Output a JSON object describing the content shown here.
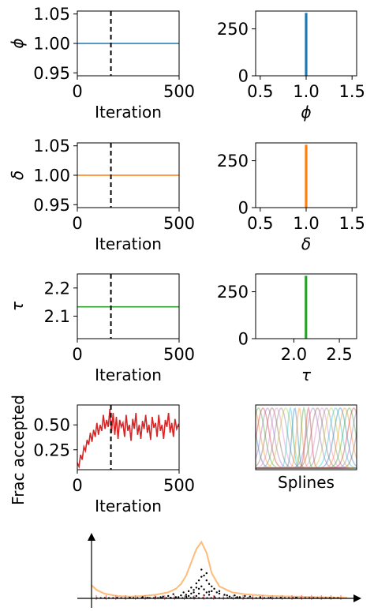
{
  "chart_data": [
    {
      "id": "trace-phi",
      "type": "line",
      "xlabel": "Iteration",
      "ylabel": "ϕ",
      "xlim": [
        0,
        500
      ],
      "ylim": [
        0.945,
        1.055
      ],
      "xticks": [
        "0",
        "500"
      ],
      "yticks": [
        "0.95",
        "1.00",
        "1.05"
      ],
      "xtick_values": [
        0,
        500
      ],
      "ytick_values": [
        0.95,
        1.0,
        1.05
      ],
      "burn_in": 165,
      "series": [
        {
          "color": "#1f77b4",
          "x": [
            0,
            500
          ],
          "y": [
            1.0,
            1.0
          ]
        }
      ]
    },
    {
      "id": "hist-phi",
      "type": "bar",
      "xlabel": "ϕ",
      "ylabel": "",
      "xlim": [
        0.45,
        1.55
      ],
      "ylim": [
        0,
        345
      ],
      "xticks": [
        "0.5",
        "1.0",
        "1.5"
      ],
      "yticks": [
        "0",
        "250"
      ],
      "xtick_values": [
        0.5,
        1.0,
        1.5
      ],
      "ytick_values": [
        0,
        250
      ],
      "bars": [
        {
          "x": 1.0,
          "value": 335,
          "color": "#1f77b4"
        }
      ]
    },
    {
      "id": "trace-delta",
      "type": "line",
      "xlabel": "Iteration",
      "ylabel": "δ",
      "xlim": [
        0,
        500
      ],
      "ylim": [
        0.945,
        1.055
      ],
      "xticks": [
        "0",
        "500"
      ],
      "yticks": [
        "0.95",
        "1.00",
        "1.05"
      ],
      "xtick_values": [
        0,
        500
      ],
      "ytick_values": [
        0.95,
        1.0,
        1.05
      ],
      "burn_in": 165,
      "series": [
        {
          "color": "#ff7f0e",
          "x": [
            0,
            500
          ],
          "y": [
            1.0,
            1.0
          ]
        }
      ]
    },
    {
      "id": "hist-delta",
      "type": "bar",
      "xlabel": "δ",
      "ylabel": "",
      "xlim": [
        0.45,
        1.55
      ],
      "ylim": [
        0,
        345
      ],
      "xticks": [
        "0.5",
        "1.0",
        "1.5"
      ],
      "yticks": [
        "0",
        "250"
      ],
      "xtick_values": [
        0.5,
        1.0,
        1.5
      ],
      "ytick_values": [
        0,
        250
      ],
      "bars": [
        {
          "x": 1.0,
          "value": 335,
          "color": "#ff7f0e"
        }
      ]
    },
    {
      "id": "trace-tau",
      "type": "line",
      "xlabel": "Iteration",
      "ylabel": "τ",
      "xlim": [
        0,
        500
      ],
      "ylim": [
        2.02,
        2.25
      ],
      "xticks": [
        "0",
        "500"
      ],
      "yticks": [
        "2.1",
        "2.2"
      ],
      "xtick_values": [
        0,
        500
      ],
      "ytick_values": [
        2.1,
        2.2
      ],
      "burn_in": 165,
      "series": [
        {
          "color": "#2ca02c",
          "x": [
            0,
            500
          ],
          "y": [
            2.133,
            2.133
          ]
        }
      ]
    },
    {
      "id": "hist-tau",
      "type": "bar",
      "xlabel": "τ",
      "ylabel": "",
      "xlim": [
        1.58,
        2.69
      ],
      "ylim": [
        0,
        345
      ],
      "xticks": [
        "2.0",
        "2.5"
      ],
      "yticks": [
        "0",
        "250"
      ],
      "xtick_values": [
        2.0,
        2.5
      ],
      "ytick_values": [
        0,
        250
      ],
      "bars": [
        {
          "x": 2.133,
          "value": 335,
          "color": "#2ca02c"
        }
      ]
    },
    {
      "id": "trace-accept",
      "type": "line",
      "xlabel": "Iteration",
      "ylabel": "Frac accepted",
      "xlim": [
        0,
        500
      ],
      "ylim": [
        0.05,
        0.7
      ],
      "xticks": [
        "0",
        "500"
      ],
      "yticks": [
        "0.25",
        "0.50"
      ],
      "xtick_values": [
        0,
        500
      ],
      "ytick_values": [
        0.25,
        0.5
      ],
      "burn_in": 165,
      "series": [
        {
          "color": "#d62728",
          "x": [
            0,
            8,
            16,
            24,
            32,
            40,
            48,
            56,
            64,
            72,
            80,
            88,
            96,
            104,
            112,
            120,
            128,
            136,
            144,
            152,
            160,
            168,
            176,
            184,
            192,
            200,
            208,
            216,
            224,
            232,
            240,
            248,
            256,
            264,
            272,
            280,
            288,
            296,
            304,
            312,
            320,
            328,
            336,
            344,
            352,
            360,
            368,
            376,
            384,
            392,
            400,
            408,
            416,
            424,
            432,
            440,
            448,
            456,
            464,
            472,
            480,
            488,
            496,
            500
          ],
          "y": [
            0.12,
            0.08,
            0.2,
            0.15,
            0.28,
            0.24,
            0.35,
            0.3,
            0.42,
            0.33,
            0.45,
            0.38,
            0.52,
            0.4,
            0.5,
            0.44,
            0.6,
            0.46,
            0.55,
            0.48,
            0.66,
            0.42,
            0.62,
            0.4,
            0.58,
            0.36,
            0.55,
            0.48,
            0.52,
            0.38,
            0.6,
            0.44,
            0.5,
            0.34,
            0.56,
            0.46,
            0.62,
            0.4,
            0.5,
            0.36,
            0.54,
            0.46,
            0.6,
            0.42,
            0.5,
            0.35,
            0.58,
            0.47,
            0.52,
            0.38,
            0.6,
            0.44,
            0.5,
            0.36,
            0.55,
            0.48,
            0.62,
            0.42,
            0.52,
            0.38,
            0.56,
            0.46,
            0.5,
            0.48
          ]
        }
      ]
    },
    {
      "id": "splines",
      "type": "line",
      "xlabel": "Splines",
      "ylabel": ""
    },
    {
      "id": "fit",
      "type": "scatter",
      "xlabel": "",
      "ylabel": "",
      "curve": {
        "color": "#ffbb78",
        "x": [
          0,
          0.02,
          0.05,
          0.1,
          0.15,
          0.2,
          0.25,
          0.3,
          0.33,
          0.35,
          0.37,
          0.39,
          0.41,
          0.43,
          0.45,
          0.47,
          0.5,
          0.55,
          0.6,
          0.7,
          0.8,
          0.9,
          1.0
        ],
        "y": [
          0.22,
          0.14,
          0.08,
          0.04,
          0.03,
          0.04,
          0.06,
          0.1,
          0.16,
          0.24,
          0.38,
          0.6,
          0.82,
          0.94,
          0.76,
          0.42,
          0.2,
          0.1,
          0.07,
          0.04,
          0.03,
          0.02,
          0.01
        ]
      },
      "points": {
        "color": "#000000",
        "x": [
          0.38,
          0.39,
          0.4,
          0.41,
          0.42,
          0.42,
          0.43,
          0.43,
          0.44,
          0.44,
          0.45,
          0.45,
          0.46,
          0.46,
          0.47,
          0.47,
          0.48,
          0.49,
          0.5,
          0.36,
          0.37,
          0.4,
          0.41,
          0.35,
          0.3,
          0.32,
          0.52,
          0.54,
          0.56,
          0.58,
          0.6,
          0.28,
          0.25,
          0.22,
          0.62,
          0.66,
          0.7,
          0.2,
          0.15,
          0.1,
          0.74,
          0.8,
          0.45,
          0.43,
          0.41,
          0.39,
          0.37,
          0.33,
          0.5,
          0.53,
          0.57,
          0.44,
          0.46,
          0.48,
          0.4,
          0.42,
          0.38,
          0.34,
          0.31,
          0.27
        ],
        "y": [
          0.12,
          0.18,
          0.1,
          0.25,
          0.3,
          0.08,
          0.48,
          0.2,
          0.38,
          0.15,
          0.3,
          0.1,
          0.24,
          0.06,
          0.2,
          0.12,
          0.16,
          0.1,
          0.08,
          0.1,
          0.06,
          0.14,
          0.04,
          0.05,
          0.04,
          0.07,
          0.06,
          0.03,
          0.05,
          0.02,
          0.04,
          0.03,
          0.02,
          0.01,
          0.03,
          0.02,
          0.01,
          0.02,
          0.01,
          0.01,
          0.01,
          0.01,
          0.42,
          0.36,
          0.18,
          0.08,
          0.03,
          0.02,
          0.12,
          0.05,
          0.02,
          0.05,
          0.11,
          0.03,
          0.02,
          0.16,
          0.04,
          0.02,
          0.01,
          0.02
        ]
      }
    }
  ]
}
